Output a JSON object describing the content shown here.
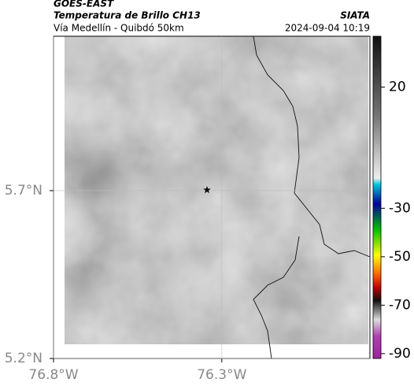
{
  "header": {
    "line1": "GOES-EAST",
    "title": "Temperatura de Brillo CH13",
    "subtitle": "Vía Medellín - Quibdó 50km",
    "source": "SIATA",
    "timestamp": "2024-09-04 10:19"
  },
  "map": {
    "lonlim": [
      -76.8,
      -75.86
    ],
    "latlim": [
      5.2,
      6.16
    ],
    "xticks": [
      {
        "value": -76.8,
        "label": "76.8°W"
      },
      {
        "value": -76.3,
        "label": "76.3°W"
      }
    ],
    "yticks": [
      {
        "value": 5.2,
        "label": "5.2°N"
      },
      {
        "value": 5.7,
        "label": "5.7°N"
      }
    ],
    "grid": true,
    "marker": {
      "lon": -76.344,
      "lat": 5.702
    }
  },
  "colorbar": {
    "lim": [
      41,
      -92
    ],
    "ticks": [
      20,
      -30,
      -50,
      -70,
      -90
    ]
  }
}
